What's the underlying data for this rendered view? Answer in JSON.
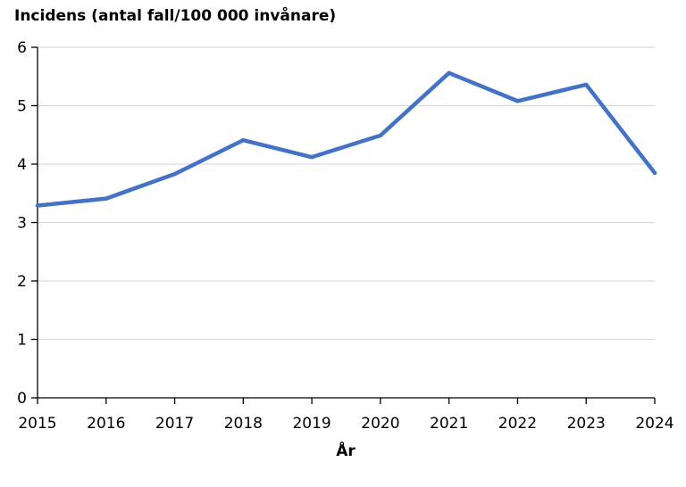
{
  "chart_data": {
    "type": "line",
    "title": "Incidens (antal fall/100 000 invånare)",
    "xlabel": "År",
    "ylabel": "",
    "x": [
      2015,
      2016,
      2017,
      2018,
      2019,
      2020,
      2021,
      2022,
      2023,
      2024
    ],
    "x_tick_labels": [
      "2015",
      "2016",
      "2017",
      "2018",
      "2019",
      "2020",
      "2021",
      "2022",
      "2023",
      "2024"
    ],
    "y_tick_labels": [
      "0",
      "1",
      "2",
      "3",
      "4",
      "5",
      "6"
    ],
    "ylim": [
      0,
      6
    ],
    "grid": true,
    "legend": "none",
    "series": [
      {
        "values": [
          3.29,
          3.41,
          3.83,
          4.41,
          4.12,
          4.49,
          5.56,
          5.08,
          5.36,
          3.85
        ],
        "color": "#4472C4"
      }
    ]
  }
}
